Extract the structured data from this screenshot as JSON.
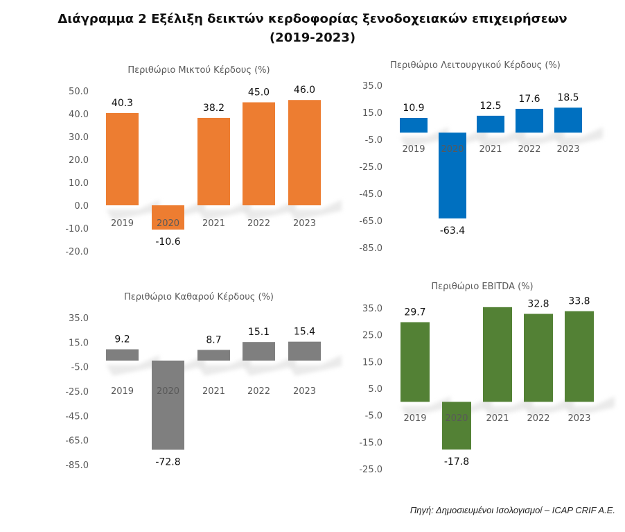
{
  "title": {
    "line1": "Διάγραμμα 2 Εξέλιξη δεικτών κερδοφορίας ξενοδοχειακών επιχειρήσεων",
    "line2": "(2019-2023)"
  },
  "source": "Πηγή: Δημοσιευμένοι Ισολογισμοί – ICAP CRIF A.E.",
  "chart_data": [
    {
      "type": "bar",
      "title": "Περιθώριο Μικτού Κέρδους (%)",
      "categories": [
        "2019",
        "2020",
        "2021",
        "2022",
        "2023"
      ],
      "values": [
        40.3,
        -10.6,
        38.2,
        45.0,
        46.0
      ],
      "labels": [
        "40.3",
        "-10.6",
        "38.2",
        "45.0",
        "46.0"
      ],
      "ylim": [
        -20,
        50
      ],
      "yticks": [
        "50.0",
        "40.0",
        "30.0",
        "20.0",
        "10.0",
        "0.0",
        "-10.0",
        "-20.0"
      ],
      "color": "#ED7D31",
      "grid": false,
      "legend": "none"
    },
    {
      "type": "bar",
      "title": "Περιθώριο Λειτουργικού Κέρδους (%)",
      "categories": [
        "2019",
        "2020",
        "2021",
        "2022",
        "2023"
      ],
      "values": [
        10.9,
        -63.4,
        12.5,
        17.6,
        18.5
      ],
      "labels": [
        "10.9",
        "-63.4",
        "12.5",
        "17.6",
        "18.5"
      ],
      "ylim": [
        -85,
        35
      ],
      "yticks": [
        "35.0",
        "15.0",
        "-5.0",
        "-25.0",
        "-45.0",
        "-65.0",
        "-85.0"
      ],
      "color": "#0070C0",
      "grid": false,
      "legend": "none"
    },
    {
      "type": "bar",
      "title": "Περιθώριο Καθαρού Κέρδους (%)",
      "categories": [
        "2019",
        "2020",
        "2021",
        "2022",
        "2023"
      ],
      "values": [
        9.2,
        -72.8,
        8.7,
        15.1,
        15.4
      ],
      "labels": [
        "9.2",
        "-72.8",
        "8.7",
        "15.1",
        "15.4"
      ],
      "ylim": [
        -85,
        35
      ],
      "yticks": [
        "35.0",
        "15.0",
        "-5.0",
        "-25.0",
        "-45.0",
        "-65.0",
        "-85.0"
      ],
      "color": "#7F7F7F",
      "grid": false,
      "legend": "none"
    },
    {
      "type": "bar",
      "title": "Περιθώριο EBITDA (%)",
      "categories": [
        "2019",
        "2020",
        "2021",
        "2022",
        "2023"
      ],
      "values": [
        29.7,
        -17.8,
        35.3,
        32.8,
        33.8
      ],
      "labels": [
        "29.7",
        "-17.8",
        "",
        "32.8",
        "33.8"
      ],
      "ylim": [
        -25,
        35
      ],
      "yticks": [
        "35.0",
        "25.0",
        "15.0",
        "5.0",
        "-5.0",
        "-15.0",
        "-25.0"
      ],
      "color": "#538135",
      "grid": false,
      "legend": "none"
    }
  ]
}
